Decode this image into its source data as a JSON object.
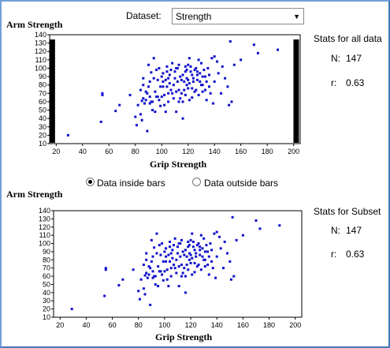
{
  "dataset": {
    "label": "Dataset:",
    "selected": "Strength"
  },
  "top_plot": {
    "y_title": "Arm Strength",
    "x_title": "Grip Strength",
    "stats_title": "Stats for all data",
    "n_label": "N:",
    "n_value": "147",
    "r_label": "r:",
    "r_value": "0.63"
  },
  "radios": {
    "inside_label": "Data inside bars",
    "outside_label": "Data outside bars",
    "selected": "inside"
  },
  "bottom_plot": {
    "y_title": "Arm Strength",
    "x_title": "Grip Strength",
    "stats_title": "Stats for Subset",
    "n_label": "N:",
    "n_value": "147",
    "r_label": "r:",
    "r_value": "0.63"
  },
  "chart_data": [
    {
      "type": "scatter",
      "title": "",
      "xlabel": "Grip Strength",
      "ylabel": "Arm Strength",
      "xlim": [
        15,
        205
      ],
      "ylim": [
        10,
        140
      ],
      "xticks": [
        20,
        40,
        60,
        80,
        100,
        120,
        140,
        160,
        180,
        200
      ],
      "yticks": [
        10,
        20,
        30,
        40,
        50,
        60,
        70,
        80,
        90,
        100,
        110,
        120,
        130,
        140
      ],
      "grid": false,
      "point_color": "#1010cc",
      "bars": [
        17,
        202
      ],
      "x": [
        29,
        54,
        55,
        55,
        65,
        68,
        76,
        80,
        81,
        82,
        84,
        85,
        85,
        86,
        86,
        86,
        87,
        88,
        88,
        89,
        89,
        90,
        90,
        91,
        91,
        91,
        92,
        92,
        93,
        94,
        94,
        95,
        95,
        96,
        96,
        97,
        97,
        98,
        98,
        99,
        100,
        100,
        101,
        101,
        101,
        102,
        102,
        103,
        103,
        104,
        104,
        104,
        105,
        105,
        105,
        106,
        106,
        107,
        107,
        108,
        108,
        109,
        109,
        110,
        110,
        111,
        111,
        112,
        112,
        113,
        113,
        114,
        114,
        115,
        115,
        116,
        116,
        117,
        117,
        118,
        118,
        118,
        119,
        119,
        119,
        120,
        120,
        120,
        121,
        121,
        121,
        122,
        122,
        123,
        123,
        124,
        124,
        125,
        125,
        126,
        126,
        127,
        127,
        128,
        128,
        129,
        129,
        130,
        130,
        131,
        131,
        132,
        133,
        133,
        134,
        134,
        135,
        136,
        136,
        137,
        138,
        139,
        140,
        140,
        142,
        143,
        145,
        146,
        148,
        150,
        151,
        152,
        153,
        155,
        160,
        170,
        173,
        188,
        116,
        99,
        93,
        111,
        123,
        84,
        131,
        113,
        127
      ],
      "y": [
        20,
        36,
        68,
        70,
        49,
        56,
        68,
        42,
        32,
        56,
        74,
        38,
        61,
        80,
        64,
        88,
        58,
        62,
        72,
        25,
        70,
        78,
        104,
        66,
        58,
        84,
        60,
        95,
        60,
        112,
        88,
        72,
        48,
        66,
        98,
        86,
        66,
        62,
        100,
        78,
        66,
        90,
        78,
        84,
        94,
        68,
        56,
        86,
        48,
        96,
        78,
        102,
        70,
        88,
        60,
        82,
        92,
        74,
        98,
        70,
        106,
        80,
        64,
        96,
        88,
        72,
        48,
        100,
        84,
        74,
        104,
        64,
        90,
        86,
        70,
        60,
        92,
        84,
        74,
        96,
        102,
        68,
        80,
        88,
        98,
        104,
        76,
        86,
        112,
        62,
        82,
        96,
        102,
        76,
        92,
        88,
        84,
        98,
        72,
        74,
        100,
        86,
        92,
        68,
        110,
        84,
        94,
        80,
        106,
        90,
        72,
        98,
        90,
        74,
        84,
        62,
        100,
        92,
        78,
        70,
        112,
        58,
        114,
        84,
        108,
        94,
        70,
        102,
        88,
        78,
        56,
        132,
        60,
        104,
        110,
        128,
        118,
        122,
        40,
        55,
        50,
        100,
        65,
        45,
        80,
        60,
        96
      ]
    },
    {
      "type": "scatter",
      "title": "",
      "xlabel": "Grip Strength",
      "ylabel": "Arm Strength",
      "xlim": [
        15,
        205
      ],
      "ylim": [
        10,
        140
      ],
      "xticks": [
        20,
        40,
        60,
        80,
        100,
        120,
        140,
        160,
        180,
        200
      ],
      "yticks": [
        10,
        20,
        30,
        40,
        50,
        60,
        70,
        80,
        90,
        100,
        110,
        120,
        130,
        140
      ],
      "grid": false,
      "point_color": "#1010cc",
      "same_points_as": 0
    }
  ]
}
